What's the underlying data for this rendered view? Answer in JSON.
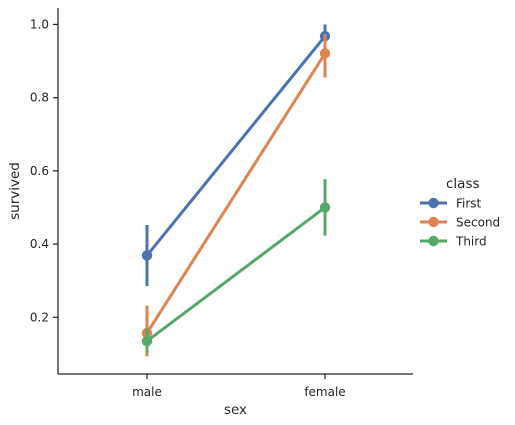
{
  "chart_data": {
    "type": "line",
    "categories": [
      "male",
      "female"
    ],
    "xlabel": "sex",
    "ylabel": "survived",
    "ylim": [
      0.045,
      1.045
    ],
    "yticks": [
      "0.2",
      "0.4",
      "0.6",
      "0.8",
      "1.0"
    ],
    "grid": false,
    "legend": {
      "title": "class",
      "placement": "right"
    },
    "series": [
      {
        "name": "First",
        "color": "#4c72b0",
        "values": [
          0.369,
          0.968
        ],
        "ci_low": [
          0.285,
          0.935
        ],
        "ci_high": [
          0.452,
          1.0
        ]
      },
      {
        "name": "Second",
        "color": "#dd8452",
        "values": [
          0.157,
          0.921
        ],
        "ci_low": [
          0.093,
          0.855
        ],
        "ci_high": [
          0.232,
          0.974
        ]
      },
      {
        "name": "Third",
        "color": "#55a868",
        "values": [
          0.135,
          0.5
        ],
        "ci_low": [
          0.104,
          0.423
        ],
        "ci_high": [
          0.17,
          0.577
        ]
      }
    ]
  }
}
